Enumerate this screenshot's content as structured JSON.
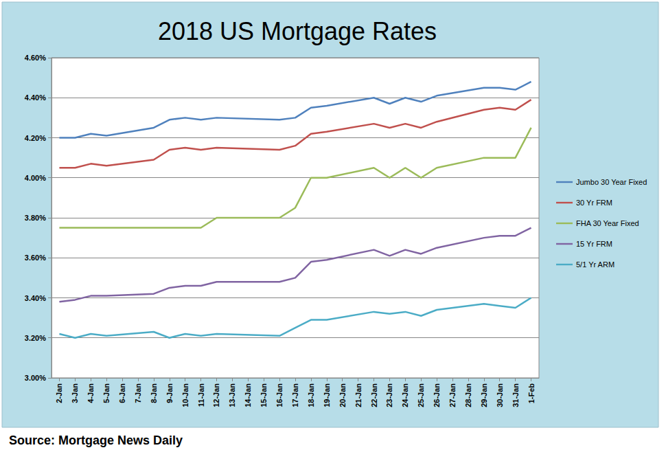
{
  "chart_data": {
    "type": "line",
    "title": "2018 US Mortgage Rates",
    "source": "Source: Mortgage News Daily",
    "categories": [
      "2-Jan",
      "3-Jan",
      "4-Jan",
      "5-Jan",
      "6-Jan",
      "7-Jan",
      "8-Jan",
      "9-Jan",
      "10-Jan",
      "11-Jan",
      "12-Jan",
      "13-Jan",
      "14-Jan",
      "15-Jan",
      "16-Jan",
      "17-Jan",
      "18-Jan",
      "19-Jan",
      "20-Jan",
      "21-Jan",
      "22-Jan",
      "23-Jan",
      "24-Jan",
      "25-Jan",
      "26-Jan",
      "27-Jan",
      "28-Jan",
      "29-Jan",
      "30-Jan",
      "31-Jan",
      "1-Feb"
    ],
    "series": [
      {
        "name": "Jumbo 30 Year Fixed",
        "color": "#4f81bd",
        "values": [
          4.2,
          4.2,
          4.22,
          4.21,
          null,
          null,
          4.25,
          4.29,
          4.3,
          4.29,
          4.3,
          null,
          null,
          null,
          4.29,
          4.3,
          4.35,
          4.36,
          null,
          null,
          4.4,
          4.37,
          4.4,
          4.38,
          4.41,
          null,
          null,
          4.45,
          4.45,
          4.44,
          4.48
        ]
      },
      {
        "name": "30 Yr FRM",
        "color": "#c0504d",
        "values": [
          4.05,
          4.05,
          4.07,
          4.06,
          null,
          null,
          4.09,
          4.14,
          4.15,
          4.14,
          4.15,
          null,
          null,
          null,
          4.14,
          4.16,
          4.22,
          4.23,
          null,
          null,
          4.27,
          4.25,
          4.27,
          4.25,
          4.28,
          null,
          null,
          4.34,
          4.35,
          4.34,
          4.39
        ]
      },
      {
        "name": "FHA 30 Year Fixed",
        "color": "#9bbb59",
        "values": [
          3.75,
          3.75,
          3.75,
          3.75,
          null,
          null,
          3.75,
          3.75,
          3.75,
          3.75,
          3.8,
          null,
          null,
          null,
          3.8,
          3.85,
          4.0,
          4.0,
          null,
          null,
          4.05,
          4.0,
          4.05,
          4.0,
          4.05,
          null,
          null,
          4.1,
          4.1,
          4.1,
          4.25
        ]
      },
      {
        "name": "15 Yr FRM",
        "color": "#8064a2",
        "values": [
          3.38,
          3.39,
          3.41,
          3.41,
          null,
          null,
          3.42,
          3.45,
          3.46,
          3.46,
          3.48,
          null,
          null,
          null,
          3.48,
          3.5,
          3.58,
          3.59,
          null,
          null,
          3.64,
          3.61,
          3.64,
          3.62,
          3.65,
          null,
          null,
          3.7,
          3.71,
          3.71,
          3.75
        ]
      },
      {
        "name": "5/1 Yr ARM",
        "color": "#4bacc6",
        "values": [
          3.22,
          3.2,
          3.22,
          3.21,
          null,
          null,
          3.23,
          3.2,
          3.22,
          3.21,
          3.22,
          null,
          null,
          null,
          3.21,
          3.25,
          3.29,
          3.29,
          null,
          null,
          3.33,
          3.32,
          3.33,
          3.31,
          3.34,
          null,
          null,
          3.37,
          3.36,
          3.35,
          3.4
        ]
      }
    ],
    "ylim": [
      3.0,
      4.6
    ],
    "yticks": [
      {
        "value": 3.0,
        "label": "3.00%"
      },
      {
        "value": 3.2,
        "label": "3.20%"
      },
      {
        "value": 3.4,
        "label": "3.40%"
      },
      {
        "value": 3.6,
        "label": "3.60%"
      },
      {
        "value": 3.8,
        "label": "3.80%"
      },
      {
        "value": 4.0,
        "label": "4.00%"
      },
      {
        "value": 4.2,
        "label": "4.20%"
      },
      {
        "value": 4.4,
        "label": "4.40%"
      },
      {
        "value": 4.6,
        "label": "4.60%"
      }
    ],
    "grid": true,
    "legend": "right"
  }
}
